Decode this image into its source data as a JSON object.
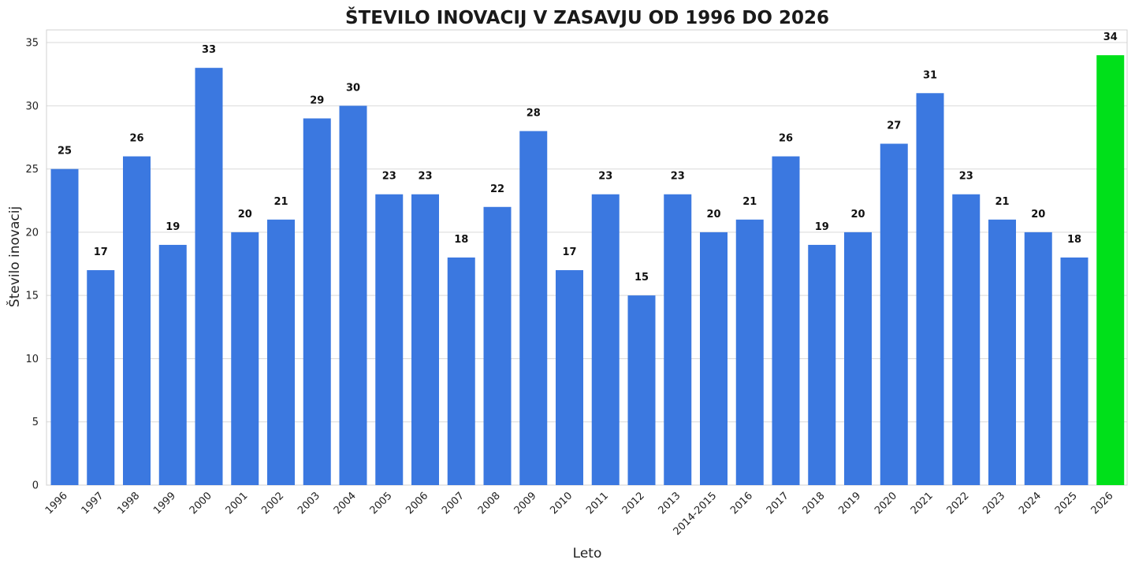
{
  "chart_data": {
    "type": "bar",
    "title": "ŠTEVILO INOVACIJ V ZASAVJU OD 1996 DO 2026",
    "xlabel": "Leto",
    "ylabel": "Število inovacij",
    "ylim": [
      0,
      36
    ],
    "yticks": [
      0,
      5,
      10,
      15,
      20,
      25,
      30,
      35
    ],
    "grid": "horizontal",
    "categories": [
      "1996",
      "1997",
      "1998",
      "1999",
      "2000",
      "2001",
      "2002",
      "2003",
      "2004",
      "2005",
      "2006",
      "2007",
      "2008",
      "2009",
      "2010",
      "2011",
      "2012",
      "2013",
      "2014-2015",
      "2016",
      "2017",
      "2018",
      "2019",
      "2020",
      "2021",
      "2022",
      "2023",
      "2024",
      "2025",
      "2026"
    ],
    "values": [
      25,
      17,
      26,
      19,
      33,
      20,
      21,
      29,
      30,
      23,
      23,
      18,
      22,
      28,
      17,
      23,
      15,
      23,
      20,
      21,
      26,
      19,
      20,
      27,
      31,
      23,
      21,
      20,
      18,
      34
    ],
    "bar_color": "#3b78e0",
    "highlight_color": "#00e01a",
    "highlight_category": "2026"
  }
}
